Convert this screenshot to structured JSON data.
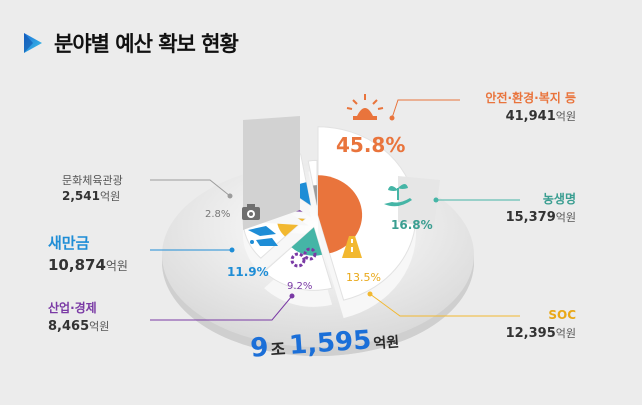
{
  "page": {
    "title": "분야별 예산 확보 현황"
  },
  "chart_data": {
    "type": "pie",
    "total_label": {
      "num1": "9",
      "unit1": "조",
      "num2": "1,595",
      "unit2": "억원"
    },
    "unit": "억원",
    "slices": [
      {
        "name": "안전·환경·복지 등",
        "value": 41941,
        "value_text": "41,941",
        "percent_text": "45.8%",
        "color": "#e9743c",
        "icon": "siren-icon"
      },
      {
        "name": "농생명",
        "value": 15379,
        "value_text": "15,379",
        "percent_text": "16.8%",
        "color": "#45b5a6",
        "icon": "sprout-hand-icon"
      },
      {
        "name": "SOC",
        "value": 12395,
        "value_text": "12,395",
        "percent_text": "13.5%",
        "color": "#f2b830",
        "icon": "road-icon"
      },
      {
        "name": "산업·경제",
        "value": 8465,
        "value_text": "8,465",
        "percent_text": "9.2%",
        "color": "#7a3aa5",
        "icon": "gears-icon"
      },
      {
        "name": "새만금",
        "value": 10874,
        "value_text": "10,874",
        "percent_text": "11.9%",
        "color": "#1e8dd6",
        "icon": "ships-icon"
      },
      {
        "name": "문화체육관광",
        "value": 2541,
        "value_text": "2,541",
        "percent_text": "2.8%",
        "color": "#9c9c9c",
        "icon": "camera-icon"
      }
    ]
  }
}
